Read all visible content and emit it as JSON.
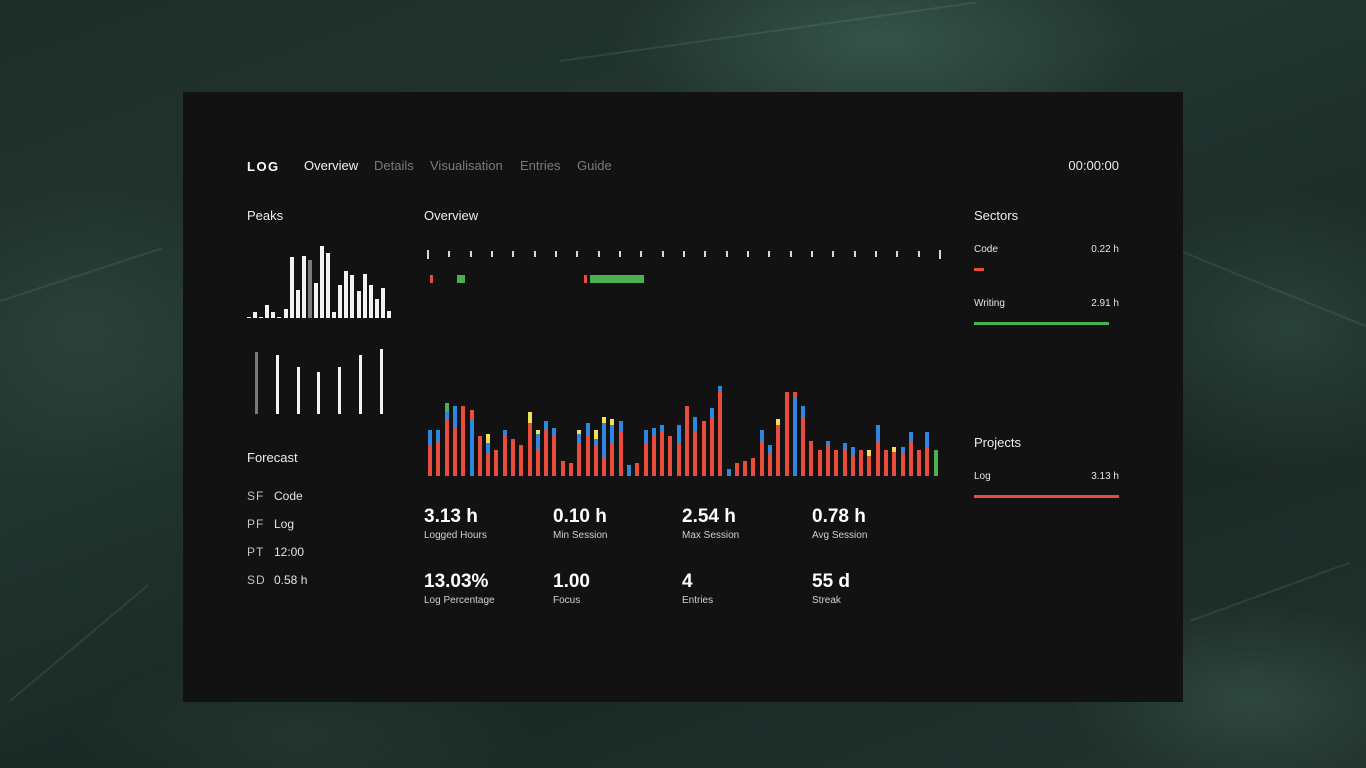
{
  "nav": {
    "brand": "LOG",
    "links": [
      "Overview",
      "Details",
      "Visualisation",
      "Entries",
      "Guide"
    ],
    "active_link": "Overview",
    "clock": "00:00:00"
  },
  "peaks": {
    "title": "Peaks",
    "hours": [
      0.02,
      0.08,
      0,
      0.18,
      0.08,
      0,
      0.12,
      0.82,
      0.38,
      0.84,
      0.78,
      0.48,
      0.98,
      0.88,
      0.08,
      0.44,
      0.64,
      0.58,
      0.36,
      0.6,
      0.44,
      0.26,
      0.4,
      0.1
    ],
    "highlight_hour": 10,
    "days": [
      0.86,
      0.82,
      0.66,
      0.58,
      0.66,
      0.82,
      0.9
    ],
    "highlight_day": 0
  },
  "forecast": {
    "title": "Forecast",
    "rows": [
      {
        "key": "SF",
        "value": "Code"
      },
      {
        "key": "PF",
        "value": "Log"
      },
      {
        "key": "PT",
        "value": "12:00"
      },
      {
        "key": "SD",
        "value": "0.58 h"
      }
    ]
  },
  "overview": {
    "title": "Overview",
    "tick_count": 25,
    "day_segments": [
      {
        "start": 0.006,
        "end": 0.012,
        "color": "#e74c3c"
      },
      {
        "start": 0.059,
        "end": 0.074,
        "color": "#4caf50"
      },
      {
        "start": 0.305,
        "end": 0.311,
        "color": "#e74c3c"
      },
      {
        "start": 0.317,
        "end": 0.422,
        "color": "#4caf50"
      }
    ],
    "daily_max_hours": 4,
    "daily_bars": [
      [
        1.4,
        0.7
      ],
      [
        1.6,
        0.5
      ],
      [
        2.6,
        0.3,
        0.4
      ],
      [
        2.2,
        1
      ],
      [
        3.2
      ],
      [
        2.6,
        0.4
      ],
      [
        1.8
      ],
      [
        1,
        0.5,
        0.4
      ],
      [
        1.2
      ],
      [
        1.8,
        0.3
      ],
      [
        1.7
      ],
      [
        1.4
      ],
      [
        2.4,
        0.5
      ],
      [
        1.2,
        0.7,
        0.2
      ],
      [
        2.1,
        0.4
      ],
      [
        1.8,
        0.4
      ],
      [
        0.7
      ],
      [
        0.6
      ],
      [
        1.5,
        0.4,
        0.2
      ],
      [
        1.8,
        0.6
      ],
      [
        1.4,
        0.3,
        0.4
      ],
      [
        0.8,
        1.6,
        0.3
      ],
      [
        1.5,
        0.8,
        0.3
      ],
      [
        2,
        0.5
      ],
      [
        0.5
      ],
      [
        0.6
      ],
      [
        1.5,
        0.6
      ],
      [
        1.8,
        0.4
      ],
      [
        2,
        0.3
      ],
      [
        1.8
      ],
      [
        1.5,
        0.8
      ],
      [
        3.2
      ],
      [
        2,
        0.7
      ],
      [
        2.5
      ],
      [
        2.7,
        0.4
      ],
      [
        3.8,
        0.3
      ],
      [
        0.3
      ],
      [
        0.6
      ],
      [
        0.7
      ],
      [
        0.8
      ],
      [
        1.6,
        0.5
      ],
      [
        1,
        0.4
      ],
      [
        2.3,
        0.3
      ],
      [
        3.8
      ],
      [
        3.6,
        0.2
      ],
      [
        2.7,
        0.5
      ],
      [
        1.6
      ],
      [
        1.2
      ],
      [
        1.4,
        0.2
      ],
      [
        1.2
      ],
      [
        1.2,
        0.3
      ],
      [
        0.9,
        0.4
      ],
      [
        1.2
      ],
      [
        0.9,
        0.3
      ],
      [
        1.6,
        0.7
      ],
      [
        1.2
      ],
      [
        1.1,
        0.2
      ],
      [
        1,
        0.3
      ],
      [
        1.6,
        0.4
      ],
      [
        1.2
      ],
      [
        1.3,
        0.7
      ],
      [
        1.2
      ]
    ],
    "daily_colors": [
      [
        "#e74c3c",
        "#2e86de"
      ],
      [
        "#e74c3c",
        "#2e86de"
      ],
      [
        "#e74c3c",
        "#2e86de",
        "#4caf50"
      ],
      [
        "#e74c3c",
        "#2e86de"
      ],
      [
        "#e74c3c"
      ],
      [
        "#2e86de",
        "#e74c3c"
      ],
      [
        "#e74c3c"
      ],
      [
        "#e74c3c",
        "#2e86de",
        "#f1e05a"
      ],
      [
        "#e74c3c"
      ],
      [
        "#e74c3c",
        "#2e86de"
      ],
      [
        "#e74c3c"
      ],
      [
        "#e74c3c"
      ],
      [
        "#e74c3c",
        "#f1e05a"
      ],
      [
        "#e74c3c",
        "#2e86de",
        "#f1e05a"
      ],
      [
        "#e74c3c",
        "#2e86de"
      ],
      [
        "#e74c3c",
        "#2e86de"
      ],
      [
        "#e74c3c"
      ],
      [
        "#e74c3c"
      ],
      [
        "#e74c3c",
        "#2e86de",
        "#f1e05a"
      ],
      [
        "#e74c3c",
        "#2e86de"
      ],
      [
        "#e74c3c",
        "#2e86de",
        "#f1e05a"
      ],
      [
        "#e74c3c",
        "#2e86de",
        "#f1e05a"
      ],
      [
        "#e74c3c",
        "#2e86de",
        "#f1e05a"
      ],
      [
        "#e74c3c",
        "#2e86de"
      ],
      [
        "#2e86de"
      ],
      [
        "#e74c3c"
      ],
      [
        "#e74c3c",
        "#2e86de"
      ],
      [
        "#e74c3c",
        "#2e86de"
      ],
      [
        "#e74c3c",
        "#2e86de"
      ],
      [
        "#e74c3c"
      ],
      [
        "#e74c3c",
        "#2e86de"
      ],
      [
        "#e74c3c"
      ],
      [
        "#e74c3c",
        "#2e86de"
      ],
      [
        "#e74c3c"
      ],
      [
        "#e74c3c",
        "#2e86de"
      ],
      [
        "#e74c3c",
        "#2e86de"
      ],
      [
        "#2e86de"
      ],
      [
        "#e74c3c"
      ],
      [
        "#e74c3c"
      ],
      [
        "#e74c3c"
      ],
      [
        "#e74c3c",
        "#2e86de"
      ],
      [
        "#e74c3c",
        "#2e86de"
      ],
      [
        "#e74c3c",
        "#f1e05a"
      ],
      [
        "#e74c3c"
      ],
      [
        "#2e86de",
        "#e74c3c"
      ],
      [
        "#e74c3c",
        "#2e86de"
      ],
      [
        "#e74c3c"
      ],
      [
        "#e74c3c"
      ],
      [
        "#e74c3c",
        "#2e86de"
      ],
      [
        "#e74c3c"
      ],
      [
        "#e74c3c",
        "#2e86de"
      ],
      [
        "#e74c3c",
        "#2e86de"
      ],
      [
        "#e74c3c"
      ],
      [
        "#e74c3c",
        "#f1e05a"
      ],
      [
        "#e74c3c",
        "#2e86de"
      ],
      [
        "#e74c3c"
      ],
      [
        "#e74c3c",
        "#f1e05a"
      ],
      [
        "#e74c3c",
        "#2e86de"
      ],
      [
        "#e74c3c",
        "#2e86de"
      ],
      [
        "#e74c3c"
      ],
      [
        "#e74c3c",
        "#2e86de"
      ],
      [
        "#4caf50"
      ]
    ]
  },
  "stats": [
    {
      "value": "3.13 h",
      "label": "Logged Hours"
    },
    {
      "value": "0.10 h",
      "label": "Min Session"
    },
    {
      "value": "2.54 h",
      "label": "Max Session"
    },
    {
      "value": "0.78 h",
      "label": "Avg Session"
    },
    {
      "value": "13.03%",
      "label": "Log Percentage"
    },
    {
      "value": "1.00",
      "label": "Focus"
    },
    {
      "value": "4",
      "label": "Entries"
    },
    {
      "value": "55 d",
      "label": "Streak"
    }
  ],
  "sectors": {
    "title": "Sectors",
    "items": [
      {
        "name": "Code",
        "value": "0.22 h",
        "hours": 0.22,
        "color": "#e74c3c"
      },
      {
        "name": "Writing",
        "value": "2.91 h",
        "hours": 2.91,
        "color": "#4caf50"
      }
    ]
  },
  "projects": {
    "title": "Projects",
    "items": [
      {
        "name": "Log",
        "value": "3.13 h",
        "hours": 3.13,
        "color": "#e74c3c"
      }
    ]
  },
  "scale_total_hours": 3.13
}
